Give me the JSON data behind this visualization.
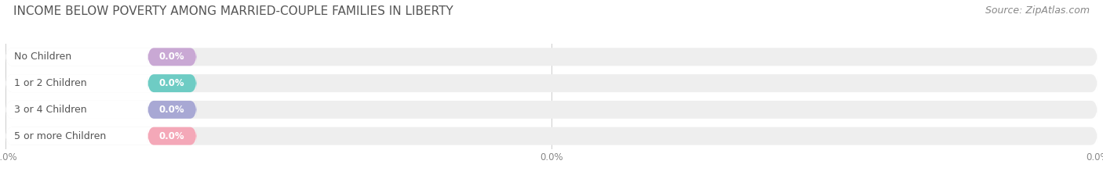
{
  "title": "INCOME BELOW POVERTY AMONG MARRIED-COUPLE FAMILIES IN LIBERTY",
  "source": "Source: ZipAtlas.com",
  "categories": [
    "No Children",
    "1 or 2 Children",
    "3 or 4 Children",
    "5 or more Children"
  ],
  "values": [
    0.0,
    0.0,
    0.0,
    0.0
  ],
  "bar_colors": [
    "#c9a8d4",
    "#6eccc4",
    "#a8a8d4",
    "#f4a8b8"
  ],
  "bar_bg_color": "#eeeeee",
  "label_pill_color": "#f8f8f8",
  "background_color": "#ffffff",
  "title_fontsize": 11,
  "label_fontsize": 9,
  "value_fontsize": 8.5,
  "source_fontsize": 9,
  "tick_fontsize": 8.5,
  "tick_color": "#888888",
  "title_color": "#555555",
  "label_color": "#555555",
  "grid_color": "#cccccc"
}
